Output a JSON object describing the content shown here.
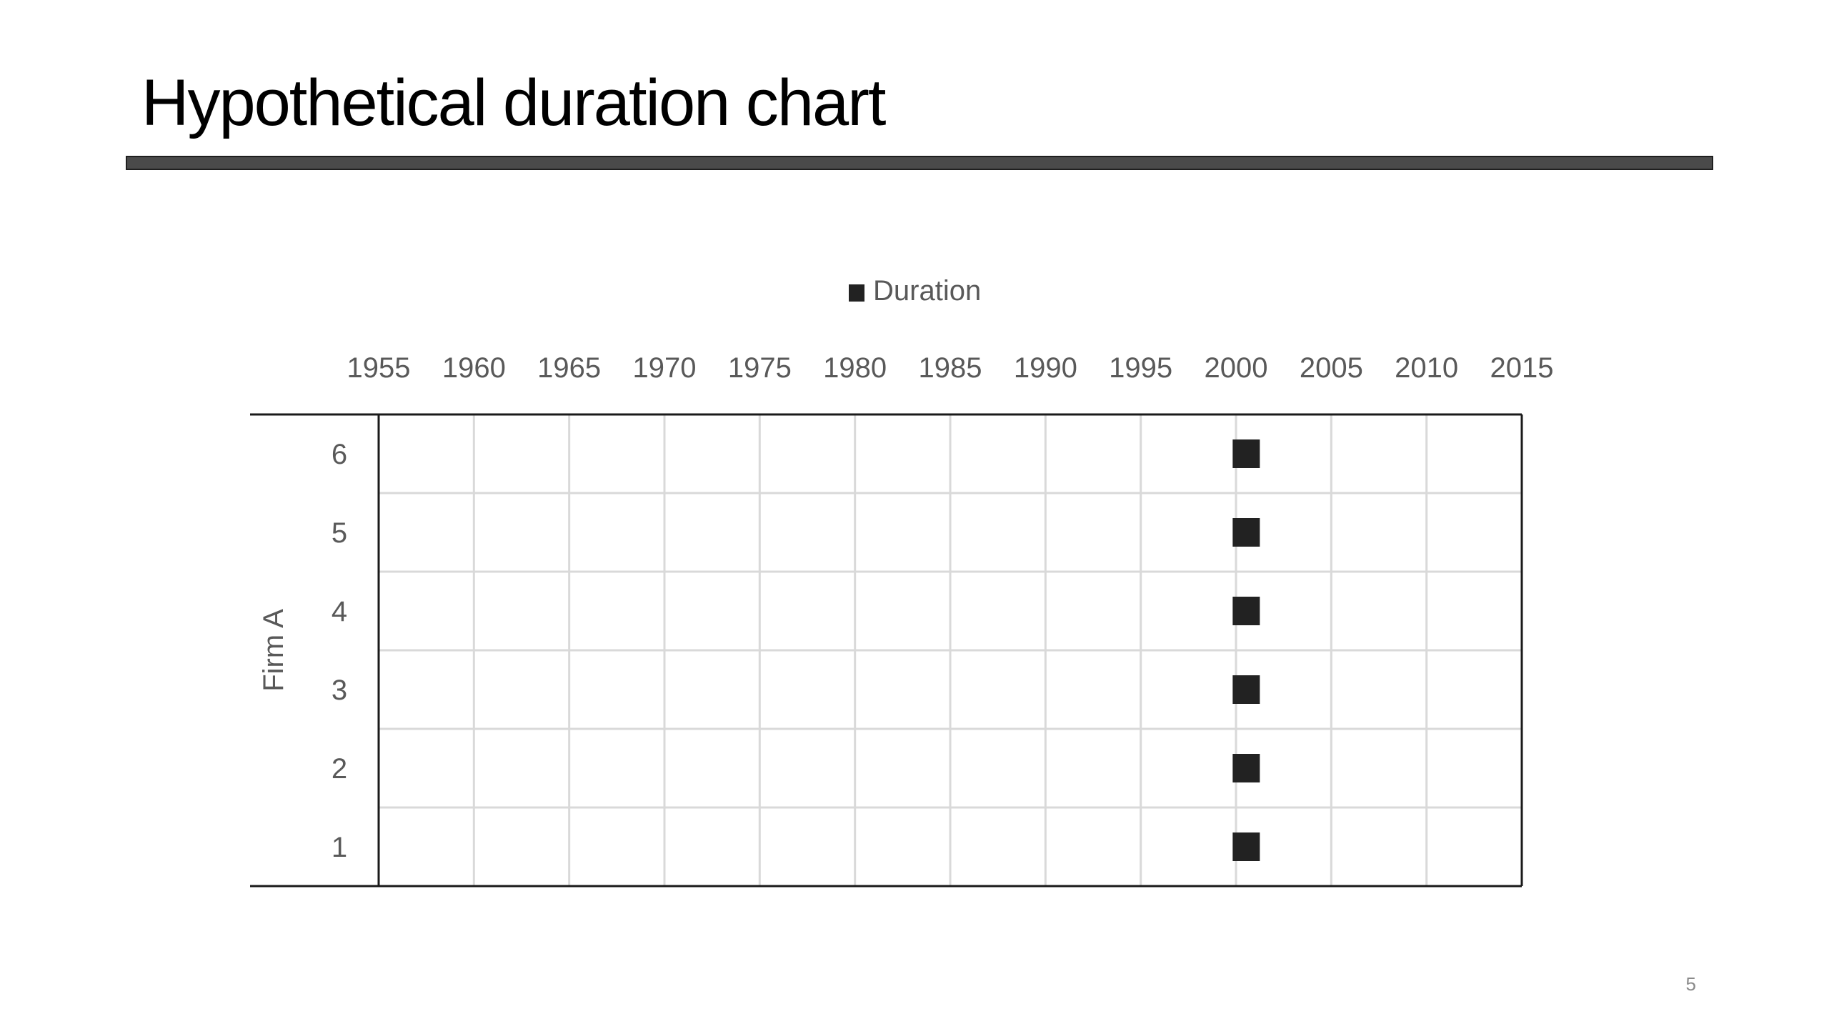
{
  "slide": {
    "title": "Hypothetical duration chart",
    "page_number": "5"
  },
  "chart_data": {
    "type": "scatter",
    "title": "",
    "xlabel": "",
    "ylabel": "Firm A",
    "x_axis_position": "top",
    "xlim": [
      1955,
      2015
    ],
    "x_ticks": [
      1955,
      1960,
      1965,
      1970,
      1975,
      1980,
      1985,
      1990,
      1995,
      2000,
      2005,
      2010,
      2015
    ],
    "y_categories": [
      "1",
      "2",
      "3",
      "4",
      "5",
      "6"
    ],
    "legend": {
      "position": "top",
      "entries": [
        "Duration"
      ]
    },
    "grid": true,
    "series": [
      {
        "name": "Duration",
        "marker": "square",
        "color": "#222222",
        "points": [
          {
            "x": 2000.5,
            "y": "1"
          },
          {
            "x": 2000.5,
            "y": "2"
          },
          {
            "x": 2000.5,
            "y": "3"
          },
          {
            "x": 2000.5,
            "y": "4"
          },
          {
            "x": 2000.5,
            "y": "5"
          },
          {
            "x": 2000.5,
            "y": "6"
          }
        ]
      }
    ]
  }
}
